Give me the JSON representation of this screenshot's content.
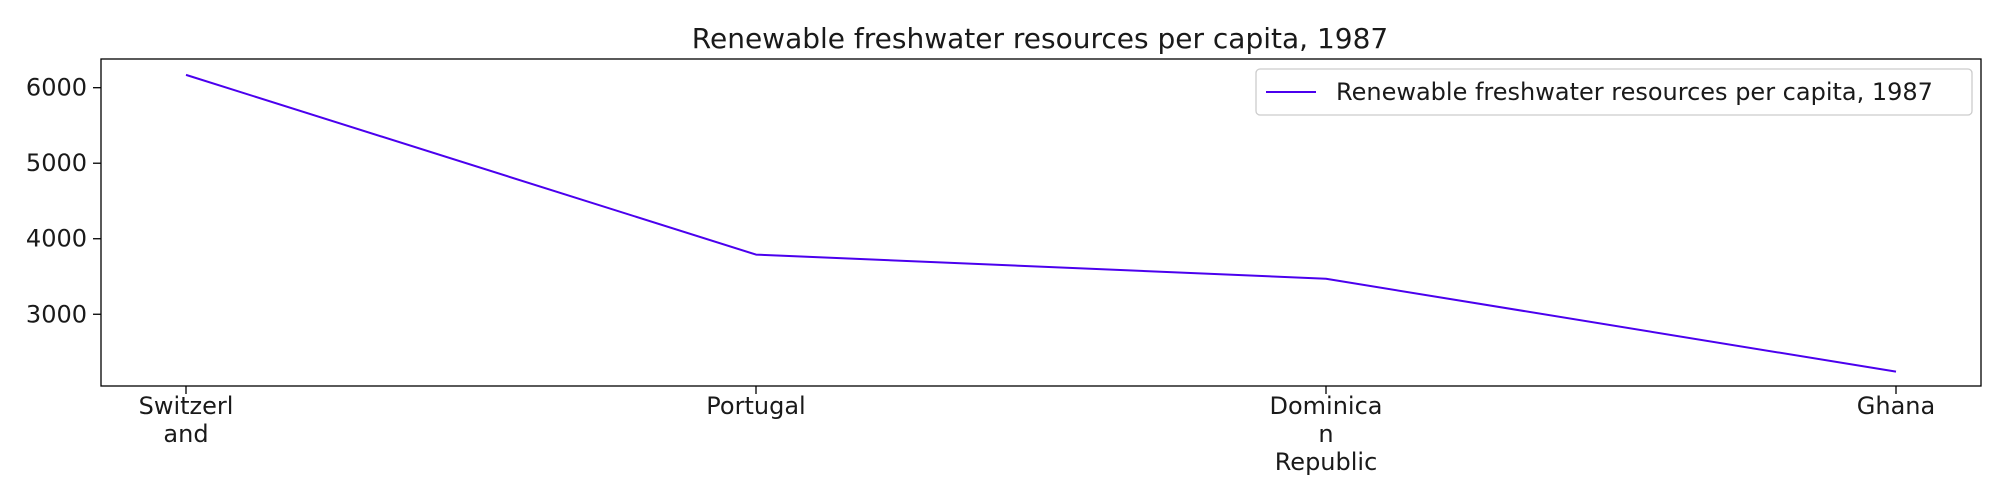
{
  "chart_data": {
    "type": "line",
    "title": "Renewable freshwater resources per capita, 1987",
    "xlabel": "",
    "ylabel": "",
    "categories": [
      "Switzerland",
      "Portugal",
      "Dominican Republic",
      "Ghana"
    ],
    "category_lines": [
      [
        "Switzerl",
        "and"
      ],
      [
        "Portugal"
      ],
      [
        "Dominica",
        "n",
        "Republic"
      ],
      [
        "Ghana"
      ]
    ],
    "series": [
      {
        "name": "Renewable freshwater resources per capita, 1987",
        "values": [
          6170,
          3790,
          3470,
          2240
        ],
        "color": "#4b00ee"
      }
    ],
    "ylim": [
      2050,
      6380
    ],
    "yticks": [
      3000,
      4000,
      5000,
      6000
    ],
    "grid": false,
    "legend": "top-right"
  }
}
